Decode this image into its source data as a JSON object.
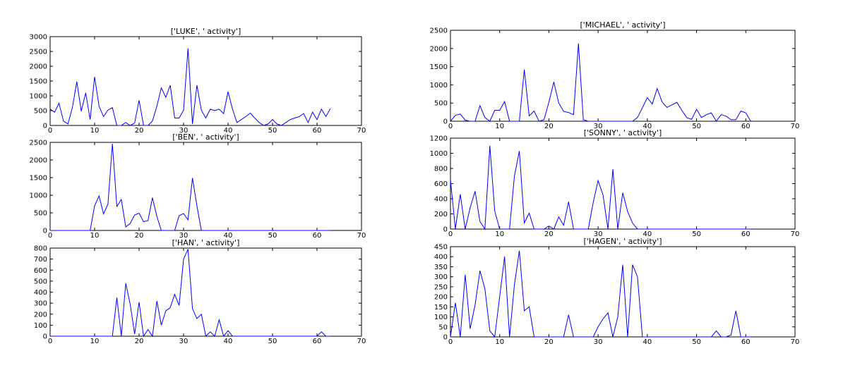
{
  "chart_data": [
    {
      "type": "line",
      "title": "['LUKE', ' activity']",
      "xlabel": "",
      "ylabel": "",
      "xlim": [
        0,
        70
      ],
      "ylim": [
        0,
        3000
      ],
      "xticks": [
        0,
        10,
        20,
        30,
        40,
        50,
        60,
        70
      ],
      "yticks": [
        0,
        500,
        1000,
        1500,
        2000,
        2500,
        3000
      ],
      "grid": false,
      "color": "#0000ff",
      "x": [
        0,
        1,
        2,
        3,
        4,
        5,
        6,
        7,
        8,
        9,
        10,
        11,
        12,
        13,
        14,
        15,
        16,
        17,
        18,
        19,
        20,
        21,
        22,
        23,
        24,
        25,
        26,
        27,
        28,
        29,
        30,
        31,
        32,
        33,
        34,
        35,
        36,
        37,
        38,
        39,
        40,
        41,
        42,
        43,
        44,
        45,
        46,
        47,
        48,
        49,
        50,
        51,
        52,
        53,
        54,
        55,
        56,
        57,
        58,
        59,
        60,
        61,
        62,
        63
      ],
      "values": [
        550,
        450,
        750,
        150,
        50,
        600,
        1480,
        480,
        1100,
        200,
        1640,
        650,
        300,
        520,
        600,
        0,
        0,
        100,
        0,
        80,
        850,
        0,
        0,
        150,
        650,
        1270,
        950,
        1360,
        250,
        250,
        520,
        2600,
        50,
        1360,
        520,
        250,
        550,
        500,
        550,
        400,
        1140,
        550,
        100,
        200,
        300,
        420,
        250,
        100,
        0,
        50,
        200,
        50,
        0,
        100,
        200,
        250,
        300,
        400,
        100,
        450,
        200,
        550,
        300,
        570
      ]
    },
    {
      "type": "line",
      "title": "['BEN', ' activity']",
      "xlabel": "",
      "ylabel": "",
      "xlim": [
        0,
        70
      ],
      "ylim": [
        0,
        2500
      ],
      "xticks": [
        0,
        10,
        20,
        30,
        40,
        50,
        60,
        70
      ],
      "yticks": [
        0,
        500,
        1000,
        1500,
        2000,
        2500
      ],
      "grid": false,
      "color": "#0000ff",
      "x": [
        0,
        1,
        2,
        3,
        4,
        5,
        6,
        7,
        8,
        9,
        10,
        11,
        12,
        13,
        14,
        15,
        16,
        17,
        18,
        19,
        20,
        21,
        22,
        23,
        24,
        25,
        26,
        27,
        28,
        29,
        30,
        31,
        32,
        33,
        34,
        35,
        36,
        37,
        38,
        39,
        40,
        41,
        42,
        43,
        44,
        45,
        46,
        47,
        48,
        49,
        50,
        51,
        52,
        53,
        54,
        55,
        56,
        57,
        58,
        59,
        60,
        61,
        62,
        63
      ],
      "values": [
        0,
        0,
        0,
        0,
        0,
        0,
        0,
        0,
        0,
        0,
        700,
        980,
        470,
        750,
        2460,
        680,
        880,
        100,
        200,
        440,
        490,
        250,
        280,
        930,
        400,
        0,
        0,
        0,
        0,
        420,
        480,
        300,
        1490,
        700,
        0,
        0,
        0,
        0,
        0,
        0,
        0,
        0,
        0,
        0,
        0,
        0,
        0,
        0,
        0,
        0,
        0,
        0,
        0,
        0,
        0,
        0,
        0,
        0,
        0,
        0,
        0,
        0,
        0,
        0
      ]
    },
    {
      "type": "line",
      "title": "['HAN', ' activity']",
      "xlabel": "",
      "ylabel": "",
      "xlim": [
        0,
        70
      ],
      "ylim": [
        0,
        800
      ],
      "xticks": [
        0,
        10,
        20,
        30,
        40,
        50,
        60,
        70
      ],
      "yticks": [
        0,
        100,
        200,
        300,
        400,
        500,
        600,
        700,
        800
      ],
      "grid": false,
      "color": "#0000ff",
      "x": [
        0,
        1,
        2,
        3,
        4,
        5,
        6,
        7,
        8,
        9,
        10,
        11,
        12,
        13,
        14,
        15,
        16,
        17,
        18,
        19,
        20,
        21,
        22,
        23,
        24,
        25,
        26,
        27,
        28,
        29,
        30,
        31,
        32,
        33,
        34,
        35,
        36,
        37,
        38,
        39,
        40,
        41,
        42,
        43,
        44,
        45,
        46,
        47,
        48,
        49,
        50,
        51,
        52,
        53,
        54,
        55,
        56,
        57,
        58,
        59,
        60,
        61,
        62,
        63
      ],
      "values": [
        0,
        0,
        0,
        0,
        0,
        0,
        0,
        0,
        0,
        0,
        0,
        0,
        0,
        0,
        0,
        350,
        0,
        480,
        290,
        20,
        310,
        0,
        60,
        0,
        320,
        100,
        230,
        260,
        380,
        280,
        700,
        790,
        250,
        160,
        200,
        0,
        40,
        0,
        150,
        0,
        50,
        0,
        0,
        0,
        0,
        0,
        0,
        0,
        0,
        0,
        0,
        0,
        0,
        0,
        0,
        0,
        0,
        0,
        0,
        0,
        0,
        40,
        0,
        0
      ]
    },
    {
      "type": "line",
      "title": "['MICHAEL', ' activity']",
      "xlabel": "",
      "ylabel": "",
      "xlim": [
        0,
        70
      ],
      "ylim": [
        0,
        2500
      ],
      "xticks": [
        0,
        10,
        20,
        30,
        40,
        50,
        60,
        70
      ],
      "yticks": [
        0,
        500,
        1000,
        1500,
        2000,
        2500
      ],
      "grid": false,
      "color": "#0000ff",
      "x": [
        0,
        1,
        2,
        3,
        4,
        5,
        6,
        7,
        8,
        9,
        10,
        11,
        12,
        13,
        14,
        15,
        16,
        17,
        18,
        19,
        20,
        21,
        22,
        23,
        24,
        25,
        26,
        27,
        28,
        29,
        30,
        31,
        32,
        33,
        34,
        35,
        36,
        37,
        38,
        39,
        40,
        41,
        42,
        43,
        44,
        45,
        46,
        47,
        48,
        49,
        50,
        51,
        52,
        53,
        54,
        55,
        56,
        57,
        58,
        59,
        60,
        61
      ],
      "values": [
        0,
        160,
        200,
        30,
        0,
        0,
        430,
        100,
        0,
        300,
        300,
        540,
        0,
        0,
        0,
        1420,
        150,
        280,
        0,
        40,
        520,
        1080,
        500,
        270,
        240,
        180,
        2140,
        40,
        0,
        0,
        0,
        0,
        0,
        0,
        0,
        0,
        0,
        0,
        100,
        370,
        650,
        470,
        900,
        530,
        380,
        450,
        520,
        300,
        100,
        50,
        330,
        100,
        180,
        230,
        0,
        180,
        140,
        40,
        40,
        280,
        230,
        0
      ]
    },
    {
      "type": "line",
      "title": "['SONNY', ' activity']",
      "xlabel": "",
      "ylabel": "",
      "xlim": [
        0,
        70
      ],
      "ylim": [
        0,
        1200
      ],
      "xticks": [
        0,
        10,
        20,
        30,
        40,
        50,
        60,
        70
      ],
      "yticks": [
        0,
        200,
        400,
        600,
        800,
        1000,
        1200
      ],
      "grid": false,
      "color": "#0000ff",
      "x": [
        0,
        1,
        2,
        3,
        4,
        5,
        6,
        7,
        8,
        9,
        10,
        11,
        12,
        13,
        14,
        15,
        16,
        17,
        18,
        19,
        20,
        21,
        22,
        23,
        24,
        25,
        26,
        27,
        28,
        29,
        30,
        31,
        32,
        33,
        34,
        35,
        36,
        37,
        38,
        39,
        40,
        41,
        42,
        43,
        44,
        45,
        46,
        47,
        48,
        49,
        50,
        51,
        52,
        53,
        54,
        55,
        56,
        57,
        58,
        59,
        60,
        61
      ],
      "values": [
        650,
        0,
        460,
        0,
        280,
        500,
        100,
        0,
        1100,
        240,
        0,
        0,
        0,
        700,
        1030,
        80,
        210,
        0,
        0,
        0,
        40,
        0,
        160,
        50,
        360,
        0,
        0,
        0,
        0,
        350,
        640,
        450,
        0,
        790,
        0,
        480,
        230,
        80,
        0,
        0,
        0,
        0,
        0,
        0,
        0,
        0,
        0,
        0,
        0,
        0,
        0,
        0,
        0,
        0,
        0,
        0,
        0,
        0,
        0,
        0,
        0,
        0
      ]
    },
    {
      "type": "line",
      "title": "['HAGEN', ' activity']",
      "xlabel": "",
      "ylabel": "",
      "xlim": [
        0,
        70
      ],
      "ylim": [
        0,
        450
      ],
      "xticks": [
        0,
        10,
        20,
        30,
        40,
        50,
        60,
        70
      ],
      "yticks": [
        0,
        50,
        100,
        150,
        200,
        250,
        300,
        350,
        400,
        450
      ],
      "grid": false,
      "color": "#0000ff",
      "x": [
        0,
        1,
        2,
        3,
        4,
        5,
        6,
        7,
        8,
        9,
        10,
        11,
        12,
        13,
        14,
        15,
        16,
        17,
        18,
        19,
        20,
        21,
        22,
        23,
        24,
        25,
        26,
        27,
        28,
        29,
        30,
        31,
        32,
        33,
        34,
        35,
        36,
        37,
        38,
        39,
        40,
        41,
        42,
        43,
        44,
        45,
        46,
        47,
        48,
        49,
        50,
        51,
        52,
        53,
        54,
        55,
        56,
        57,
        58,
        59,
        60,
        61
      ],
      "values": [
        0,
        170,
        0,
        310,
        40,
        160,
        330,
        240,
        30,
        0,
        200,
        400,
        0,
        260,
        430,
        130,
        150,
        0,
        0,
        0,
        0,
        0,
        0,
        0,
        110,
        0,
        0,
        0,
        0,
        0,
        50,
        90,
        120,
        0,
        100,
        360,
        0,
        360,
        300,
        0,
        0,
        0,
        0,
        0,
        0,
        0,
        0,
        0,
        0,
        0,
        0,
        0,
        0,
        0,
        30,
        0,
        0,
        10,
        130,
        0,
        0,
        0
      ]
    }
  ]
}
